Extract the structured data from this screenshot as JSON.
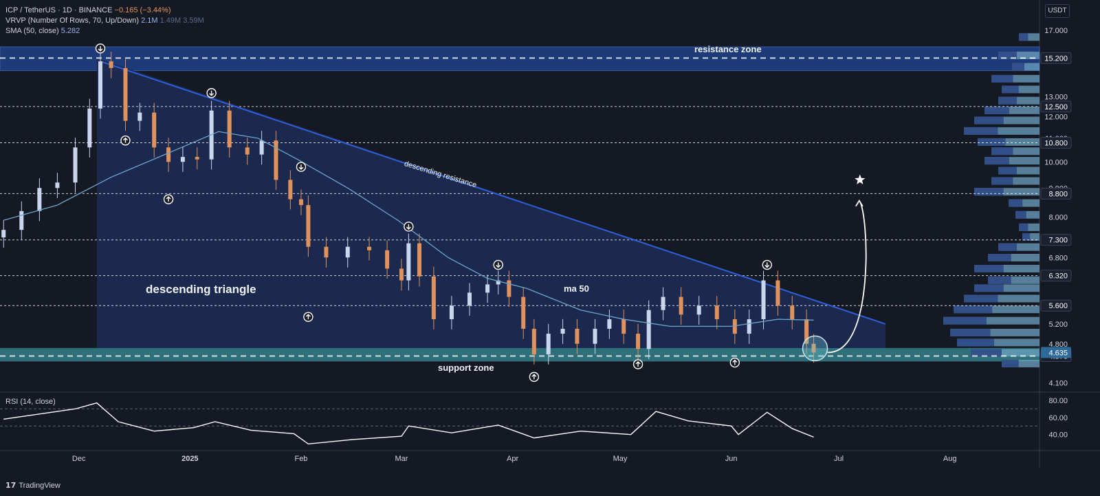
{
  "header": {
    "symbol_line": "ICP / TetherUS · 1D · BINANCE",
    "change": "−0.165 (−3.44%)",
    "vrvp_label": "VRVP (Number Of Rows, 70, Up/Down)",
    "vrvp_v1": "2.1M",
    "vrvp_v2": "1.49M",
    "vrvp_v3": "3.59M",
    "sma_label": "SMA (50, close)",
    "sma_value": "5.282"
  },
  "currency": "USDT",
  "annotations": {
    "resistance_zone": "resistance zone",
    "support_zone": "support zone",
    "descending_resistance": "descending resistance",
    "descending_triangle": "descending triangle",
    "ma50": "ma 50"
  },
  "rsi_label": "RSI (14, close)",
  "brand": "TradingView",
  "colors": {
    "background": "#151924",
    "candle_up": "#c9d6ee",
    "candle_down": "#e0925e",
    "triangle_fill": "#1c2a52",
    "resistance_line": "#2f5fd6",
    "sma": "#6fa6c8",
    "zone_resistance": "#1e3a78",
    "zone_support": "#2f6f7a",
    "volume_profile": "#6ea2c0"
  },
  "chart_data": [
    {
      "type": "line",
      "title": "ICP / TetherUS · 1D · BINANCE",
      "scale": "log",
      "x_ticks": [
        "Dec",
        "2025",
        "Feb",
        "Mar",
        "Apr",
        "May",
        "Jun",
        "Jul",
        "Aug"
      ],
      "x_range": [
        "2024-11-09",
        "2025-08-26"
      ],
      "ylim": [
        3.95,
        19.0
      ],
      "y_ticks": [
        17.0,
        13.0,
        12.0,
        11.0,
        10.0,
        9.0,
        8.0,
        6.8,
        5.2,
        4.8,
        4.1
      ],
      "level_labels": [
        15.2,
        12.5,
        10.8,
        8.8,
        7.3,
        6.32,
        5.6,
        4.57
      ],
      "last_price": 4.635,
      "series": [
        {
          "name": "ICP / TetherUS",
          "points": [
            [
              "2024-11-10",
              7.6
            ],
            [
              "2024-11-15",
              8.2
            ],
            [
              "2024-11-20",
              9.0
            ],
            [
              "2024-11-25",
              9.2
            ],
            [
              "2024-11-30",
              10.6
            ],
            [
              "2024-12-04",
              12.4
            ],
            [
              "2024-12-07",
              15.0
            ],
            [
              "2024-12-10",
              14.6
            ],
            [
              "2024-12-14",
              11.8
            ],
            [
              "2024-12-18",
              12.2
            ],
            [
              "2024-12-22",
              10.6
            ],
            [
              "2024-12-26",
              10.0
            ],
            [
              "2024-12-30",
              10.2
            ],
            [
              "2025-01-03",
              10.1
            ],
            [
              "2025-01-07",
              12.3
            ],
            [
              "2025-01-12",
              10.6
            ],
            [
              "2025-01-17",
              10.3
            ],
            [
              "2025-01-21",
              10.9
            ],
            [
              "2025-01-25",
              9.3
            ],
            [
              "2025-01-29",
              8.6
            ],
            [
              "2025-02-01",
              8.4
            ],
            [
              "2025-02-03",
              7.1
            ],
            [
              "2025-02-08",
              6.8
            ],
            [
              "2025-02-14",
              7.1
            ],
            [
              "2025-02-20",
              7.0
            ],
            [
              "2025-02-25",
              6.5
            ],
            [
              "2025-03-01",
              6.2
            ],
            [
              "2025-03-03",
              7.2
            ],
            [
              "2025-03-06",
              6.3
            ],
            [
              "2025-03-10",
              5.3
            ],
            [
              "2025-03-15",
              5.6
            ],
            [
              "2025-03-20",
              5.9
            ],
            [
              "2025-03-25",
              6.1
            ],
            [
              "2025-03-28",
              6.2
            ],
            [
              "2025-03-31",
              5.8
            ],
            [
              "2025-04-04",
              5.1
            ],
            [
              "2025-04-07",
              4.6
            ],
            [
              "2025-04-11",
              5.0
            ],
            [
              "2025-04-15",
              5.1
            ],
            [
              "2025-04-19",
              4.8
            ],
            [
              "2025-04-24",
              5.1
            ],
            [
              "2025-04-28",
              5.3
            ],
            [
              "2025-05-02",
              5.0
            ],
            [
              "2025-05-06",
              4.7
            ],
            [
              "2025-05-09",
              5.5
            ],
            [
              "2025-05-13",
              5.8
            ],
            [
              "2025-05-18",
              5.4
            ],
            [
              "2025-05-23",
              5.6
            ],
            [
              "2025-05-28",
              5.3
            ],
            [
              "2025-06-02",
              5.0
            ],
            [
              "2025-06-06",
              5.3
            ],
            [
              "2025-06-10",
              6.2
            ],
            [
              "2025-06-14",
              5.6
            ],
            [
              "2025-06-18",
              5.3
            ],
            [
              "2025-06-22",
              4.8
            ],
            [
              "2025-06-24",
              4.635
            ]
          ]
        },
        {
          "name": "SMA (50, close)",
          "points": [
            [
              "2024-11-10",
              7.9
            ],
            [
              "2024-11-25",
              8.4
            ],
            [
              "2024-12-10",
              9.4
            ],
            [
              "2024-12-25",
              10.3
            ],
            [
              "2025-01-09",
              11.3
            ],
            [
              "2025-01-20",
              11.0
            ],
            [
              "2025-01-31",
              10.1
            ],
            [
              "2025-02-14",
              9.0
            ],
            [
              "2025-02-28",
              7.9
            ],
            [
              "2025-03-14",
              6.8
            ],
            [
              "2025-03-25",
              6.25
            ],
            [
              "2025-04-05",
              6.0
            ],
            [
              "2025-04-20",
              5.5
            ],
            [
              "2025-05-02",
              5.3
            ],
            [
              "2025-05-15",
              5.15
            ],
            [
              "2025-06-01",
              5.15
            ],
            [
              "2025-06-14",
              5.3
            ],
            [
              "2025-06-24",
              5.282
            ]
          ]
        },
        {
          "name": "RSI (14, close)",
          "y_ticks": [
            80.0,
            60.0,
            40.0
          ],
          "ylim": [
            22,
            88
          ],
          "points": [
            [
              "2024-11-10",
              58
            ],
            [
              "2024-11-20",
              64
            ],
            [
              "2024-11-30",
              70
            ],
            [
              "2024-12-06",
              77
            ],
            [
              "2024-12-12",
              55
            ],
            [
              "2024-12-22",
              44
            ],
            [
              "2025-01-02",
              48
            ],
            [
              "2025-01-08",
              55
            ],
            [
              "2025-01-18",
              45
            ],
            [
              "2025-01-30",
              41
            ],
            [
              "2025-02-03",
              29
            ],
            [
              "2025-02-15",
              34
            ],
            [
              "2025-03-01",
              38
            ],
            [
              "2025-03-03",
              50
            ],
            [
              "2025-03-15",
              42
            ],
            [
              "2025-03-28",
              51
            ],
            [
              "2025-04-07",
              36
            ],
            [
              "2025-04-20",
              44
            ],
            [
              "2025-05-04",
              40
            ],
            [
              "2025-05-11",
              67
            ],
            [
              "2025-05-20",
              56
            ],
            [
              "2025-06-01",
              50
            ],
            [
              "2025-06-03",
              40
            ],
            [
              "2025-06-11",
              66
            ],
            [
              "2025-06-18",
              47
            ],
            [
              "2025-06-24",
              37
            ]
          ]
        }
      ]
    }
  ]
}
